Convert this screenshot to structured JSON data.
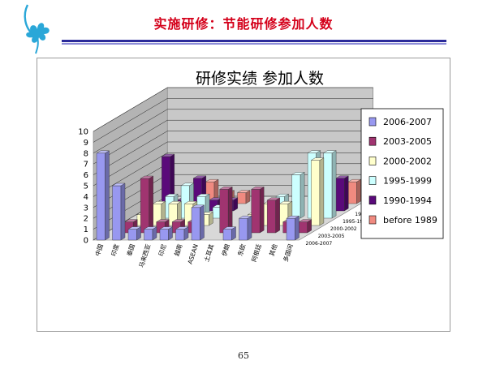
{
  "header": {
    "title": "实施研修：节能研修参加人数"
  },
  "footer": {
    "page_number": "65"
  },
  "colors": {
    "title": "#d4001a",
    "rule_dark": "#2a2a9a",
    "rule_light": "#8c8cd8",
    "logo": "#2aa7d8"
  },
  "icons": [
    "clover-logo-icon"
  ],
  "chart_data": {
    "type": "bar",
    "style": "3d-column",
    "title": "研修实绩  参加人数",
    "categories": [
      "中国",
      "印度",
      "泰国",
      "马来西亚",
      "印尼",
      "越南",
      "ASEAN",
      "土耳其",
      "伊朗",
      "东欧",
      "阿根廷",
      "其他",
      "多国间"
    ],
    "series": [
      {
        "name": "2006-2007",
        "color": "#9898f0",
        "values": [
          8,
          5,
          1,
          1,
          1,
          1,
          3,
          0,
          1,
          2,
          0,
          0,
          2
        ]
      },
      {
        "name": "2003-2005",
        "color": "#a03470",
        "values": [
          0,
          1,
          5,
          1,
          1,
          1,
          0,
          4,
          0,
          4,
          3,
          1,
          1
        ]
      },
      {
        "name": "2000-2002",
        "color": "#ffffcc",
        "values": [
          0,
          1,
          2,
          2,
          2,
          1,
          0,
          0,
          1,
          2,
          2,
          0,
          6
        ]
      },
      {
        "name": "1995-1999",
        "color": "#ccffff",
        "values": [
          0,
          1,
          2,
          3,
          2,
          1,
          0,
          0,
          0,
          2,
          4,
          6,
          6
        ]
      },
      {
        "name": "1990-1994",
        "color": "#5a0a7a",
        "values": [
          0,
          5,
          1,
          3,
          1,
          1,
          0,
          0,
          0,
          0,
          0,
          1,
          3
        ]
      },
      {
        "name": "before 1989",
        "color": "#f08a80",
        "values": [
          0,
          0,
          1,
          2,
          1,
          1,
          0,
          0,
          0,
          0,
          1,
          0,
          2
        ]
      }
    ],
    "depth_labels": [
      "before 1989",
      "1990-1994",
      "1995-1999",
      "2000-2002",
      "2003-2005",
      "2006-2007"
    ],
    "ylim": [
      0,
      10
    ],
    "yticks": [
      0,
      1,
      2,
      3,
      4,
      5,
      6,
      7,
      8,
      9,
      10
    ],
    "grid": true,
    "legend_position": "right"
  }
}
